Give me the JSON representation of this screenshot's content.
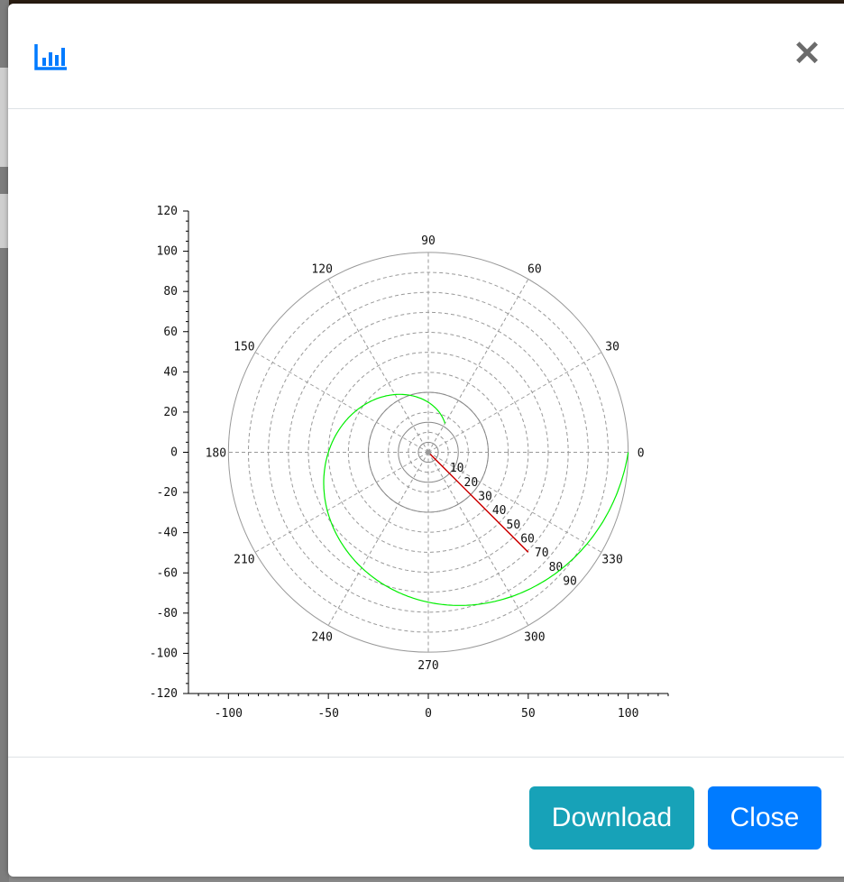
{
  "modal": {
    "header_icon": "bar-chart-icon",
    "close_symbol": "✕",
    "buttons": {
      "download": "Download",
      "close": "Close"
    },
    "colors": {
      "download": "#17a2b8",
      "close": "#007bff",
      "icon": "#007bff"
    }
  },
  "chart_data": {
    "type": "polar",
    "x_axis": {
      "ticks": [
        -100,
        -50,
        0,
        50,
        100
      ],
      "range": [
        -120,
        120
      ]
    },
    "y_axis": {
      "ticks": [
        120,
        100,
        80,
        60,
        40,
        20,
        0,
        -20,
        -40,
        -60,
        -80,
        -100,
        -120
      ],
      "range": [
        -120,
        120
      ]
    },
    "angle_labels": [
      "0",
      "30",
      "60",
      "90",
      "120",
      "150",
      "180",
      "210",
      "240",
      "270",
      "300",
      "330"
    ],
    "radial_labels": [
      "10",
      "20",
      "30",
      "40",
      "50",
      "60",
      "70",
      "80",
      "90"
    ],
    "radial_axis_angle_deg": -45,
    "max_radius": 100,
    "series": [
      {
        "color": "#00ee00",
        "kind": "spiral",
        "theta_deg_range": [
          0,
          360
        ],
        "r_range": [
          100,
          0
        ]
      }
    ],
    "grid": true,
    "radial_axis_color": "#cc0000"
  }
}
